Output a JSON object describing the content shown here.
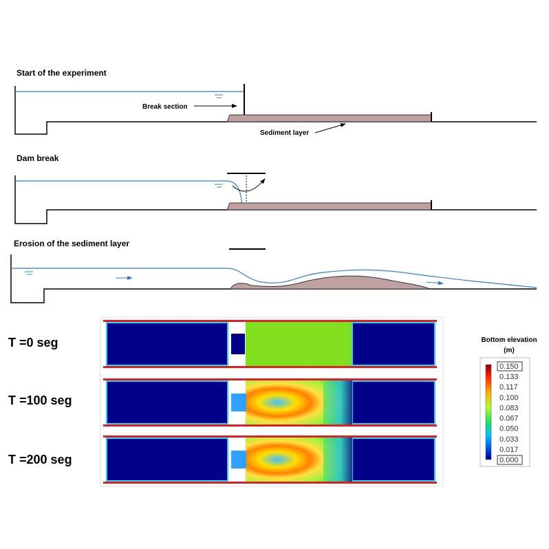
{
  "panels": [
    {
      "title": "Start of the experiment",
      "labels": [
        "Break section",
        "Sediment layer"
      ]
    },
    {
      "title": "Dam break"
    },
    {
      "title": "Erosion of the sediment layer"
    }
  ],
  "snapshots": [
    "T =0 seg",
    "T =100 seg",
    "T =200 seg"
  ],
  "colorbar": {
    "title": [
      "Bottom elevation",
      "(m)"
    ],
    "ticks": [
      "0.150",
      "0.133",
      "0.117",
      "0.100",
      "0.083",
      "0.067",
      "0.050",
      "0.033",
      "0.017",
      "0.000"
    ]
  }
}
